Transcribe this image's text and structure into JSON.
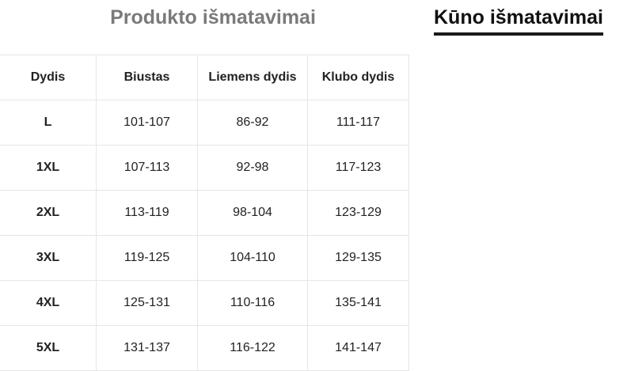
{
  "tabs": [
    {
      "label": "Produkto išmatavimai",
      "active": false
    },
    {
      "label": "Kūno išmatavimai",
      "active": true
    }
  ],
  "table": {
    "headers": [
      "Dydis",
      "Biustas",
      "Liemens dydis",
      "Klubo dydis"
    ],
    "rows": [
      [
        "L",
        "101-107",
        "86-92",
        "111-117"
      ],
      [
        "1XL",
        "107-113",
        "92-98",
        "117-123"
      ],
      [
        "2XL",
        "113-119",
        "98-104",
        "123-129"
      ],
      [
        "3XL",
        "119-125",
        "104-110",
        "129-135"
      ],
      [
        "4XL",
        "125-131",
        "110-116",
        "135-141"
      ],
      [
        "5XL",
        "131-137",
        "116-122",
        "141-147"
      ]
    ]
  }
}
